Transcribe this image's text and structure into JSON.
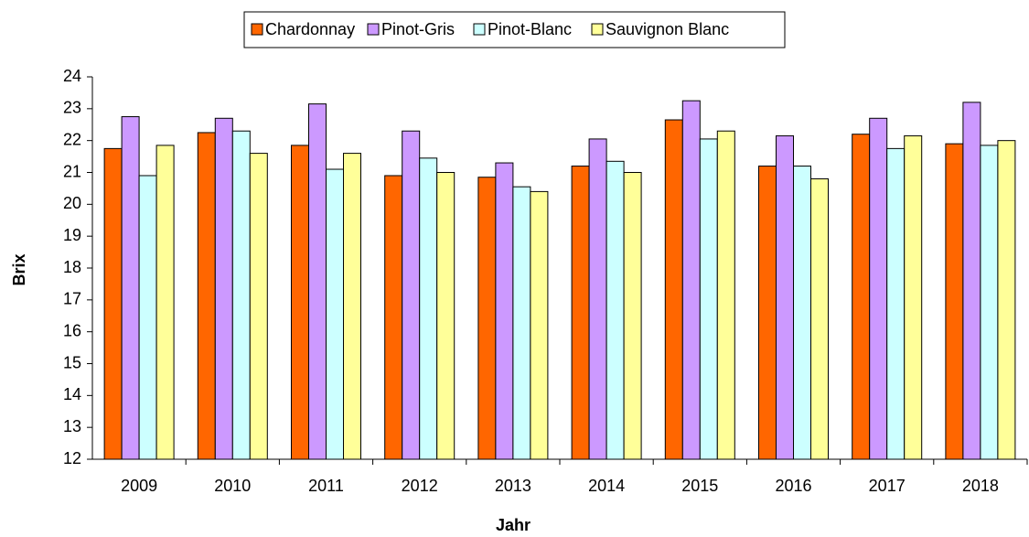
{
  "chart_data": {
    "type": "bar",
    "x_label": "Jahr",
    "y_label": "Brix",
    "categories": [
      "2009",
      "2010",
      "2011",
      "2012",
      "2013",
      "2014",
      "2015",
      "2016",
      "2017",
      "2018"
    ],
    "series": [
      {
        "name": "Chardonnay",
        "color": "#ff6600",
        "values": [
          21.75,
          22.25,
          21.85,
          20.9,
          20.85,
          21.2,
          22.65,
          21.2,
          22.2,
          21.9
        ]
      },
      {
        "name": "Pinot-Gris",
        "color": "#cc99ff",
        "values": [
          22.75,
          22.7,
          23.15,
          22.3,
          21.3,
          22.05,
          23.25,
          22.15,
          22.7,
          23.2
        ]
      },
      {
        "name": "Pinot-Blanc",
        "color": "#ccffff",
        "values": [
          20.9,
          22.3,
          21.1,
          21.45,
          20.55,
          21.35,
          22.05,
          21.2,
          21.75,
          21.85
        ]
      },
      {
        "name": "Sauvignon Blanc",
        "color": "#ffff99",
        "values": [
          21.85,
          21.6,
          21.6,
          21.0,
          20.4,
          21.0,
          22.3,
          20.8,
          22.15,
          22.0
        ]
      }
    ],
    "ylim": [
      12,
      24
    ],
    "yticks": [
      12,
      13,
      14,
      15,
      16,
      17,
      18,
      19,
      20,
      21,
      22,
      23,
      24
    ],
    "grid": false,
    "legend": "top"
  }
}
